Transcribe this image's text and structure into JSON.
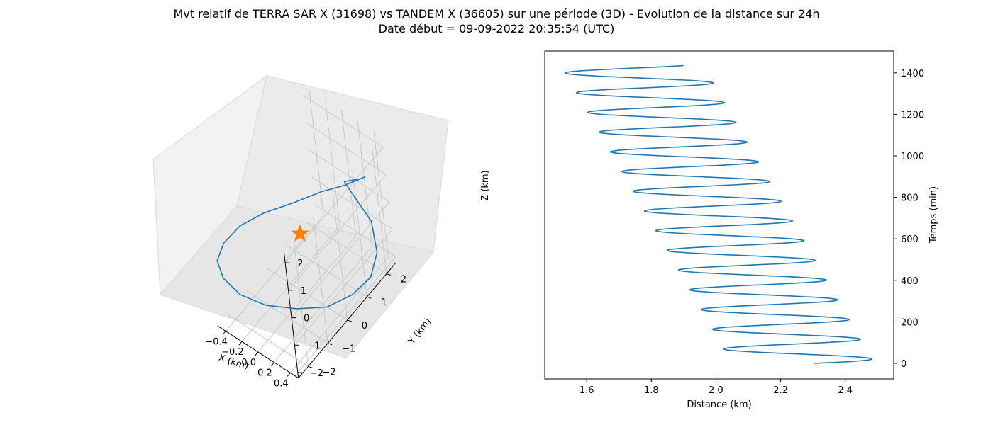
{
  "title_line1": "Mvt relatif de TERRA SAR X (31698) vs TANDEM X (36605) sur une période (3D) - Evolution de la distance sur 24h",
  "title_line2": "Date début = 09-09-2022 20:35:54 (UTC)",
  "colors": {
    "series": "#1f77b4",
    "star": "#ff7f0e",
    "pane": "#f2f2f2",
    "grid": "#c8c8c8"
  },
  "chart_data": [
    {
      "type": "line3d",
      "xlabel": "X (km)",
      "ylabel": "Y (km)",
      "zlabel": "Z (km)",
      "x_ticks": [
        "−0.4",
        "−0.2",
        "0.0",
        "0.2",
        "0.4"
      ],
      "y_ticks": [
        "−2",
        "−1",
        "0",
        "1",
        "2"
      ],
      "z_ticks": [
        "−2",
        "−1",
        "0",
        "1",
        "2"
      ],
      "xlim": [
        -0.5,
        0.5
      ],
      "ylim": [
        -2.5,
        2.5
      ],
      "zlim": [
        -2.2,
        2.4
      ],
      "grid": true,
      "series": [
        {
          "shape": "closed ellipse",
          "points": [
            [
              0.0,
              2.25,
              0.0
            ],
            [
              0.26,
              2.13,
              0.7
            ],
            [
              0.42,
              1.82,
              1.35
            ],
            [
              0.49,
              1.34,
              1.8
            ],
            [
              0.46,
              0.7,
              2.05
            ],
            [
              0.35,
              0.0,
              2.2
            ],
            [
              0.17,
              -0.7,
              2.05
            ],
            [
              -0.05,
              -1.34,
              1.8
            ],
            [
              -0.25,
              -1.82,
              1.35
            ],
            [
              -0.4,
              -2.13,
              0.7
            ],
            [
              -0.48,
              -2.25,
              0.0
            ],
            [
              -0.46,
              -2.13,
              -0.7
            ],
            [
              -0.35,
              -1.82,
              -1.35
            ],
            [
              -0.17,
              -1.34,
              -1.8
            ],
            [
              0.05,
              -0.7,
              -2.05
            ],
            [
              0.25,
              0.0,
              -2.2
            ],
            [
              0.4,
              0.7,
              -2.05
            ],
            [
              0.48,
              1.34,
              -1.8
            ],
            [
              0.46,
              1.82,
              -1.35
            ],
            [
              0.34,
              2.13,
              -0.7
            ],
            [
              0.0,
              2.25,
              0.0
            ]
          ]
        }
      ],
      "marker": {
        "symbol": "star",
        "point": [
          0,
          0,
          0
        ]
      }
    },
    {
      "type": "line",
      "xlabel": "Distance (km)",
      "ylabel": "Temps (min)",
      "x_ticks": [
        "1.6",
        "1.8",
        "2.0",
        "2.2",
        "2.4"
      ],
      "y_ticks": [
        "0",
        "200",
        "400",
        "600",
        "800",
        "1000",
        "1200",
        "1400"
      ],
      "xlim": [
        1.47,
        2.55
      ],
      "ylim": [
        -75,
        1505
      ],
      "y_axis_side": "right",
      "series": [
        {
          "description": "distance oscillating with period ~95 min, center drifting from ~2.27 to ~1.74 km",
          "period_min": 95,
          "time_range": [
            0,
            1435
          ],
          "center_range": [
            2.27,
            1.74
          ],
          "amplitude": 0.22
        }
      ]
    }
  ]
}
